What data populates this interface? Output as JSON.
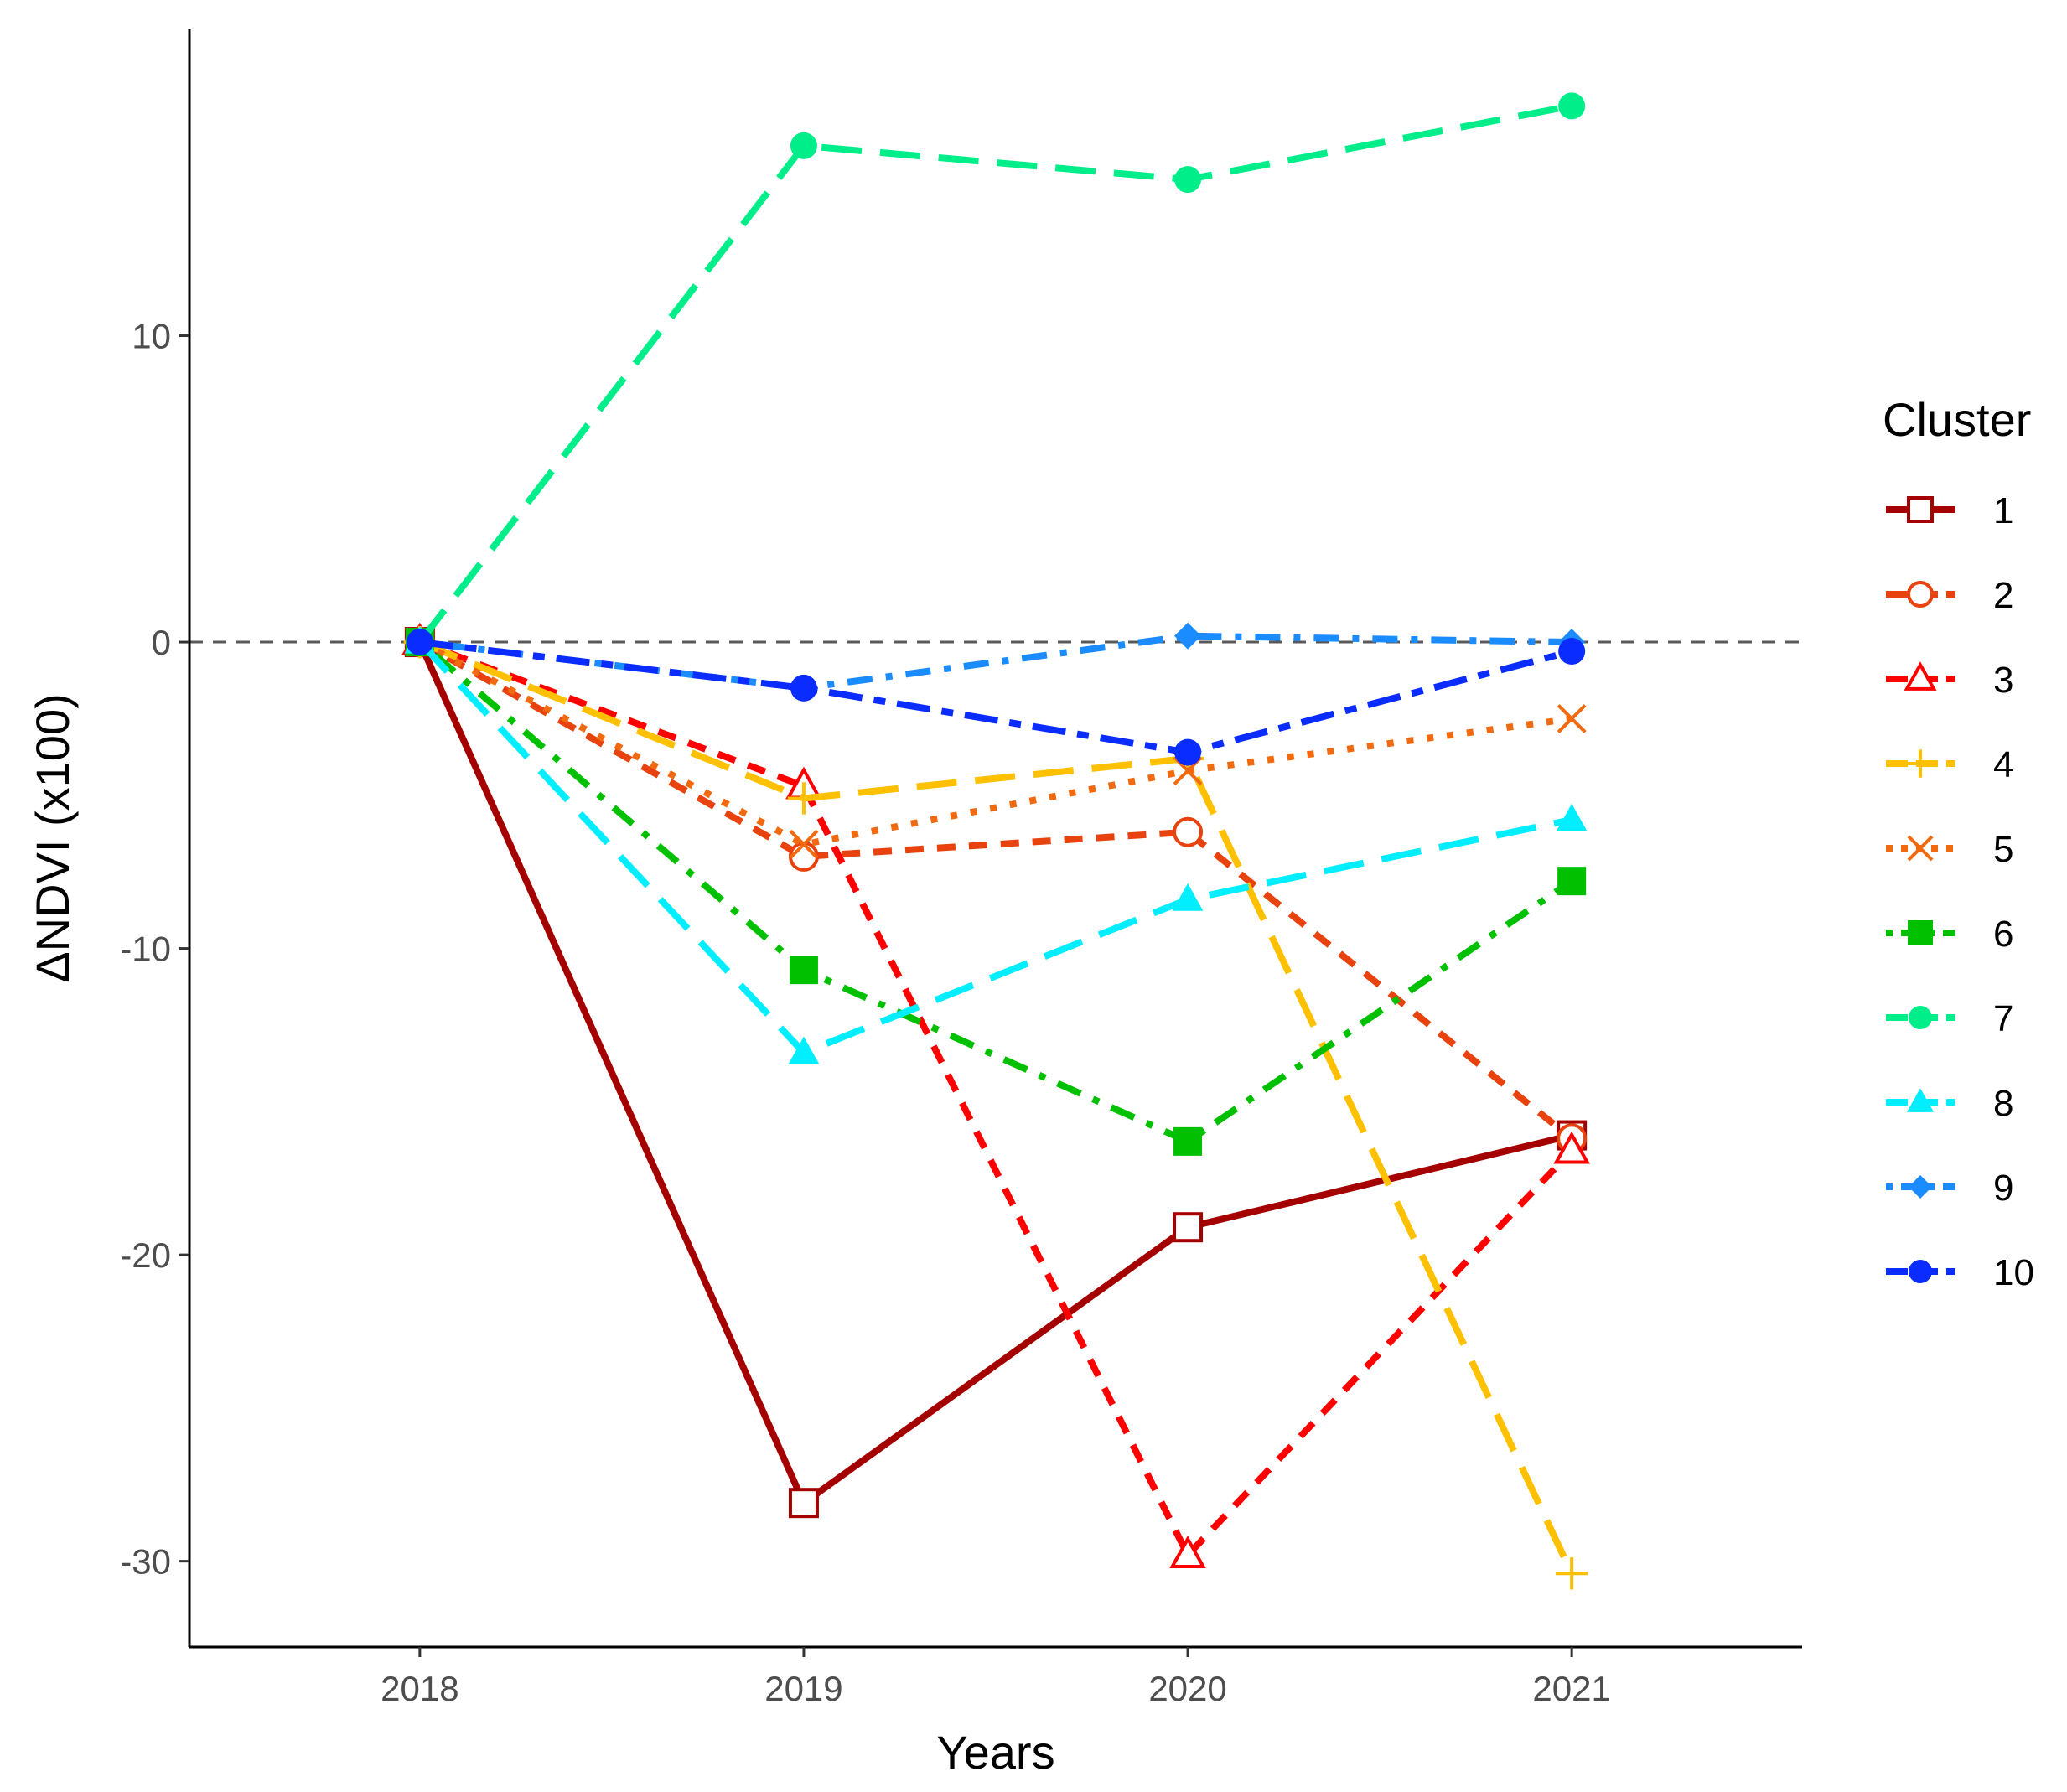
{
  "chart_data": {
    "type": "line",
    "title": "",
    "xlabel": "Years",
    "ylabel": "ΔNDVI (x100)",
    "x": [
      2018,
      2019,
      2020,
      2021
    ],
    "xtick_labels": [
      "2018",
      "2019",
      "2020",
      "2021"
    ],
    "yticks": [
      10,
      0,
      -10,
      -20,
      -30
    ],
    "ytick_labels": [
      "10",
      "0",
      "-10",
      "-20",
      "-30"
    ],
    "xlim": [
      2017.4,
      2021.6
    ],
    "ylim": [
      -32.8,
      20.0
    ],
    "reference_line": {
      "y": 0,
      "style": "dashed",
      "color": "#595959"
    },
    "legend": {
      "title": "Cluster",
      "position": "right"
    },
    "series": [
      {
        "name": "1",
        "color": "#a50000",
        "dash": "solid",
        "marker": "open-square",
        "values": [
          0,
          -28.1,
          -19.1,
          -16.1
        ]
      },
      {
        "name": "2",
        "color": "#e8420f",
        "dash": "dashed",
        "marker": "open-circle",
        "values": [
          0,
          -7.0,
          -6.2,
          -16.2
        ]
      },
      {
        "name": "3",
        "color": "#ff0000",
        "dash": "dashed",
        "marker": "open-triangle",
        "values": [
          0,
          -4.7,
          -29.8,
          -16.6
        ]
      },
      {
        "name": "4",
        "color": "#ffc000",
        "dash": "longdash",
        "marker": "plus",
        "values": [
          0,
          -5.1,
          -3.8,
          -30.4
        ]
      },
      {
        "name": "5",
        "color": "#f26a0f",
        "dash": "dotted",
        "marker": "cross",
        "values": [
          0,
          -6.6,
          -4.2,
          -2.5
        ]
      },
      {
        "name": "6",
        "color": "#00c000",
        "dash": "dotdash",
        "marker": "filled-square",
        "values": [
          0,
          -10.7,
          -16.3,
          -7.8
        ]
      },
      {
        "name": "7",
        "color": "#00ee8a",
        "dash": "longdash",
        "marker": "filled-circle",
        "values": [
          0,
          16.2,
          15.1,
          17.5
        ]
      },
      {
        "name": "8",
        "color": "#00eeff",
        "dash": "longdash",
        "marker": "filled-triangle",
        "values": [
          0,
          -13.4,
          -8.4,
          -5.8
        ]
      },
      {
        "name": "9",
        "color": "#1a8cff",
        "dash": "dotdash",
        "marker": "filled-diamond",
        "values": [
          0,
          -1.5,
          0.2,
          0
        ]
      },
      {
        "name": "10",
        "color": "#0a2cff",
        "dash": "twodash",
        "marker": "filled-circle",
        "values": [
          0,
          -1.5,
          -3.6,
          -0.3
        ]
      }
    ]
  }
}
